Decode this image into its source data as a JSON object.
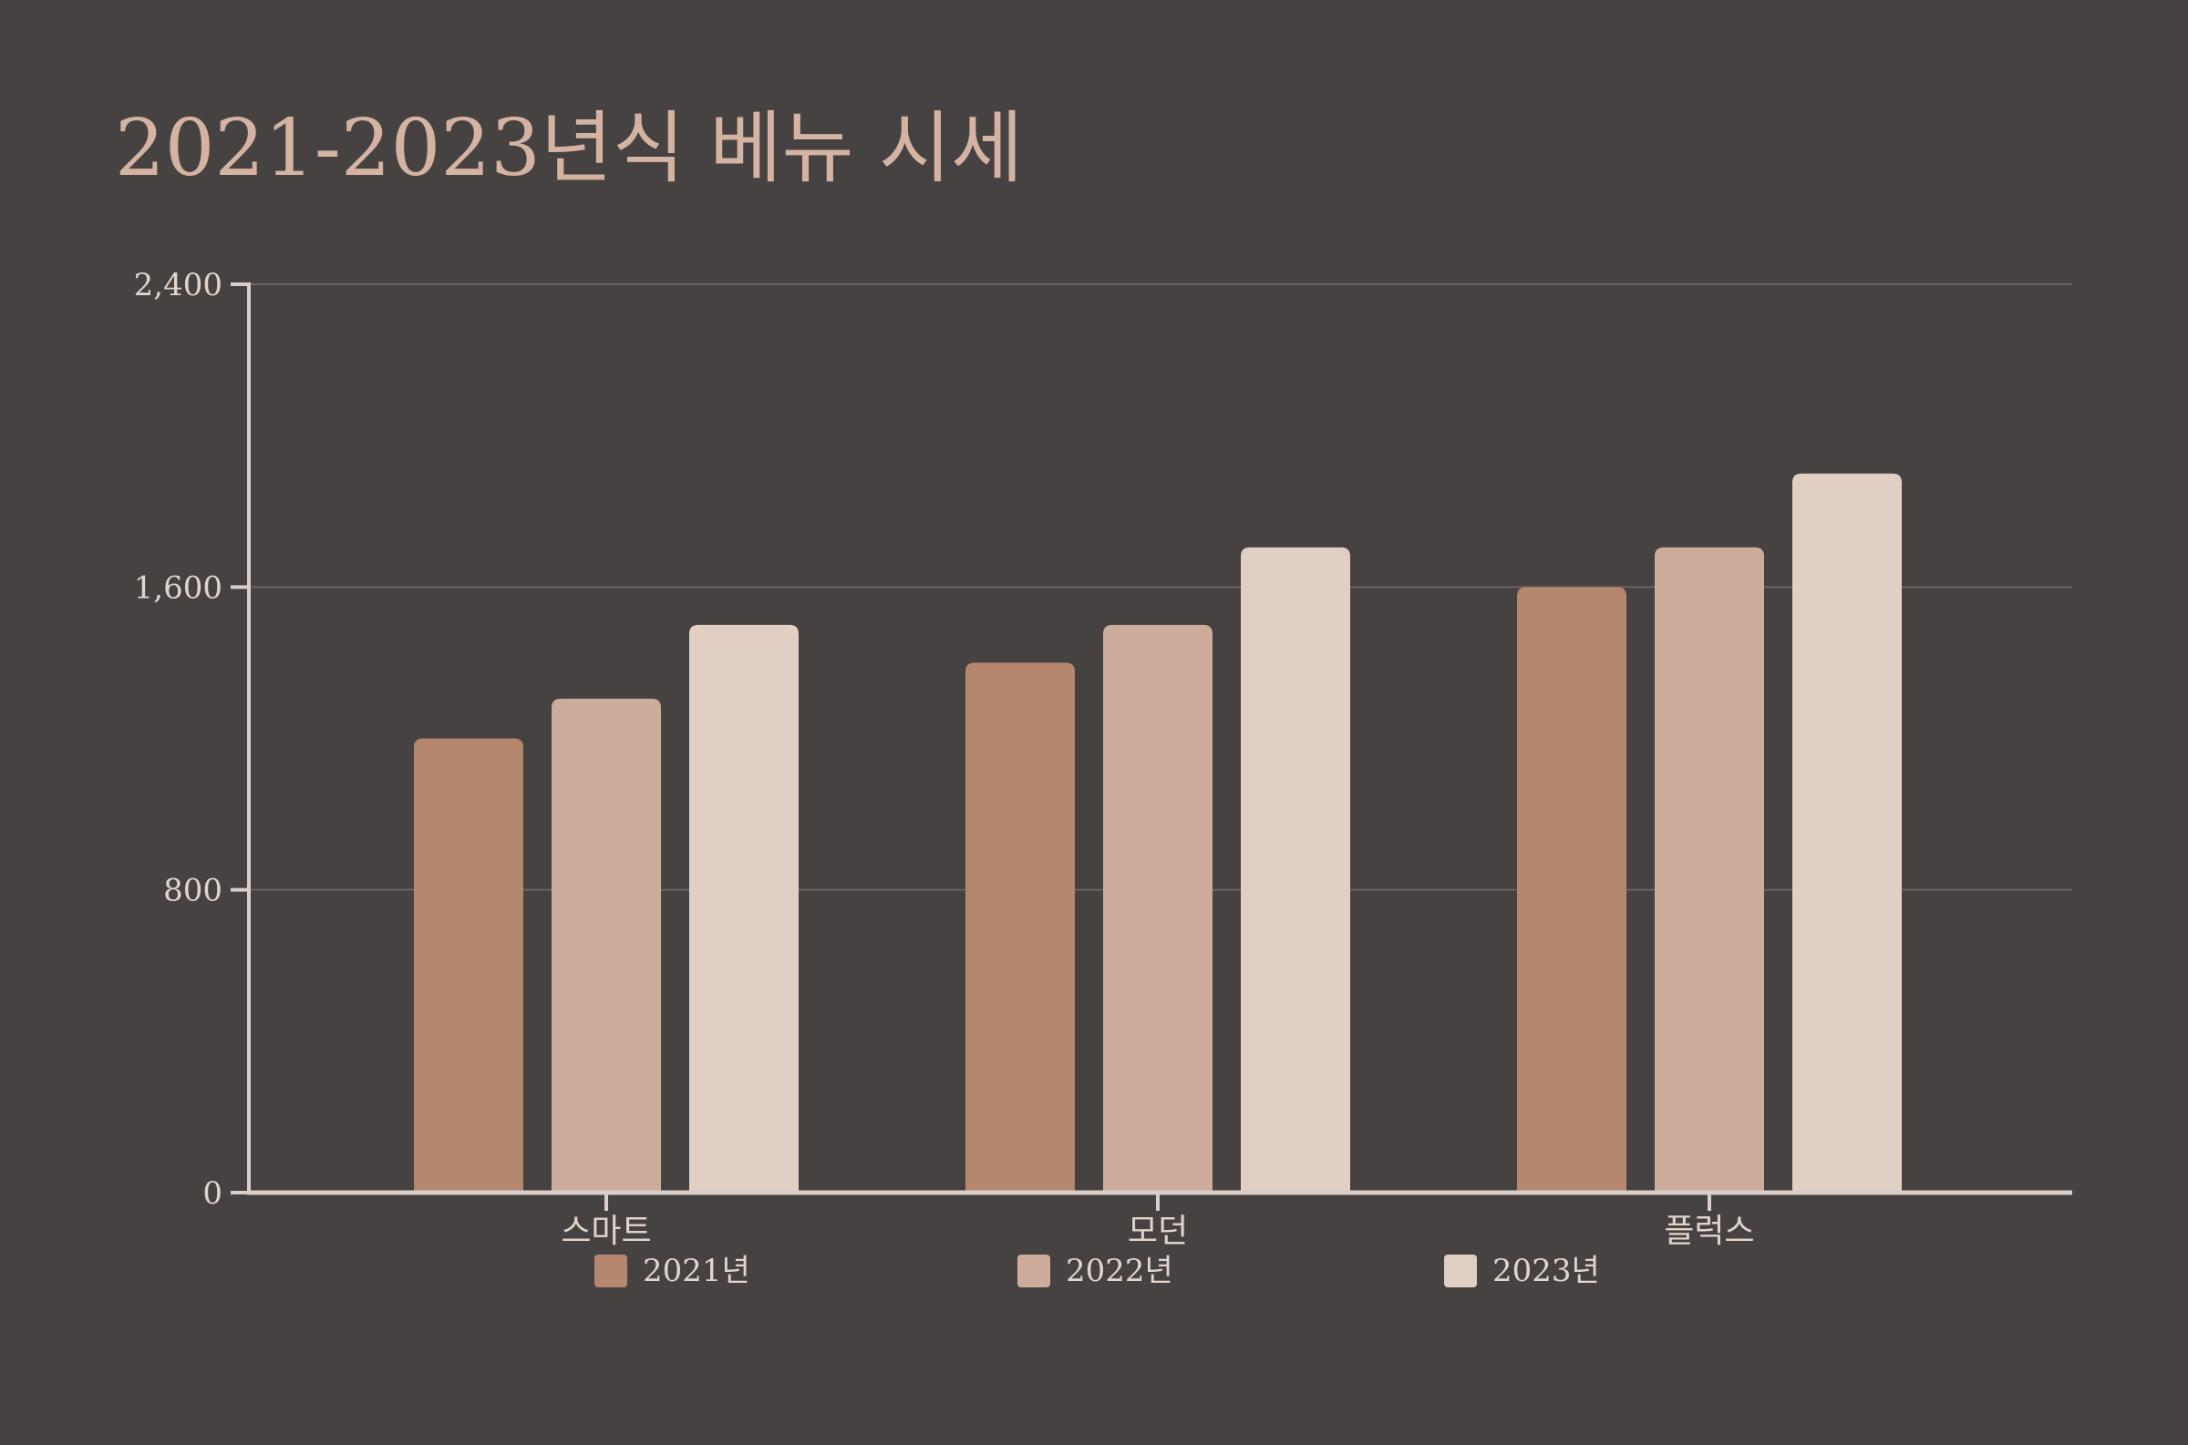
{
  "chart_data": {
    "type": "bar",
    "title": "2021-2023년식 베뉴 시세",
    "categories": [
      "스마트",
      "모던",
      "플럭스"
    ],
    "series": [
      {
        "name": "2021년",
        "values": [
          1200,
          1400,
          1600
        ],
        "color": "#b5876e"
      },
      {
        "name": "2022년",
        "values": [
          1305,
          1500,
          1705
        ],
        "color": "#cdac9c"
      },
      {
        "name": "2023년",
        "values": [
          1500,
          1705,
          1900
        ],
        "color": "#e2cfc4"
      }
    ],
    "ylim": [
      0,
      2400
    ],
    "yticks": [
      {
        "value": 0,
        "label": "0"
      },
      {
        "value": 800,
        "label": "800"
      },
      {
        "value": 1600,
        "label": "1,600"
      },
      {
        "value": 2400,
        "label": "2,400"
      }
    ],
    "grid": true,
    "legend_position": "bottom",
    "colors": {
      "background": "#464242",
      "axis": "#d9cfca",
      "grid": "#6a6463",
      "title": "#d4b3a2",
      "text": "#e2d4cc"
    }
  }
}
